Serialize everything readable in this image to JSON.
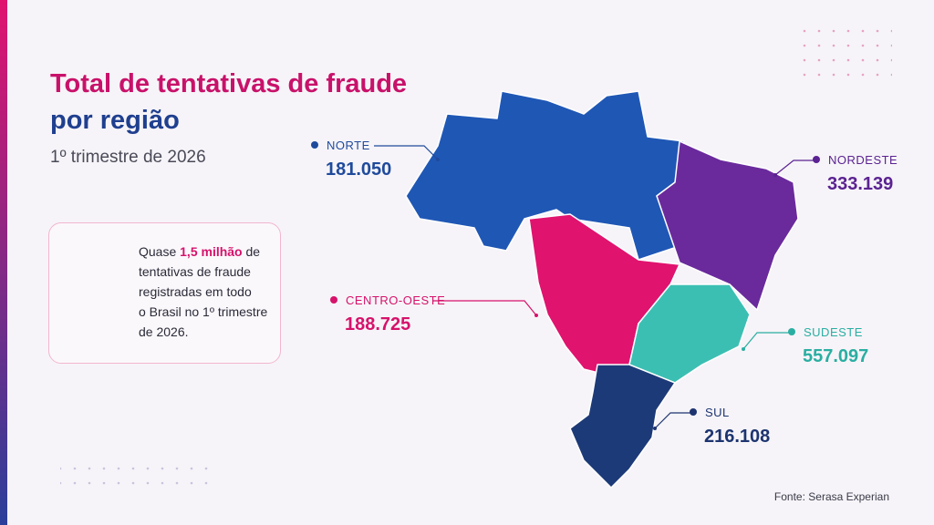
{
  "header": {
    "title_line1": "Total de tentativas de fraude",
    "title_line2": "por região",
    "subtitle": "1º trimestre de 2026"
  },
  "callout": {
    "line1_before": "Quase ",
    "highlight": "1,5 milhão",
    "line1_after": " de",
    "lines": [
      "tentativas de fraude",
      "registradas em todo",
      "o Brasil no 1º trimestre",
      "de 2026."
    ]
  },
  "regions": [
    {
      "name": "NORTE",
      "value": "181.050",
      "color": "#1f57b5",
      "label_color": "#1f4a9c"
    },
    {
      "name": "NORDESTE",
      "value": "333.139",
      "color": "#6a2a9c",
      "label_color": "#5b2292"
    },
    {
      "name": "CENTRO-OESTE",
      "value": "188.725",
      "color": "#e0136f",
      "label_color": "#d6126b"
    },
    {
      "name": "SUDESTE",
      "value": "557.097",
      "color": "#3cbfb3",
      "label_color": "#2aaea2"
    },
    {
      "name": "SUL",
      "value": "216.108",
      "color": "#1d3a78",
      "label_color": "#1d3470"
    }
  ],
  "source": "Fonte: Serasa Experian"
}
